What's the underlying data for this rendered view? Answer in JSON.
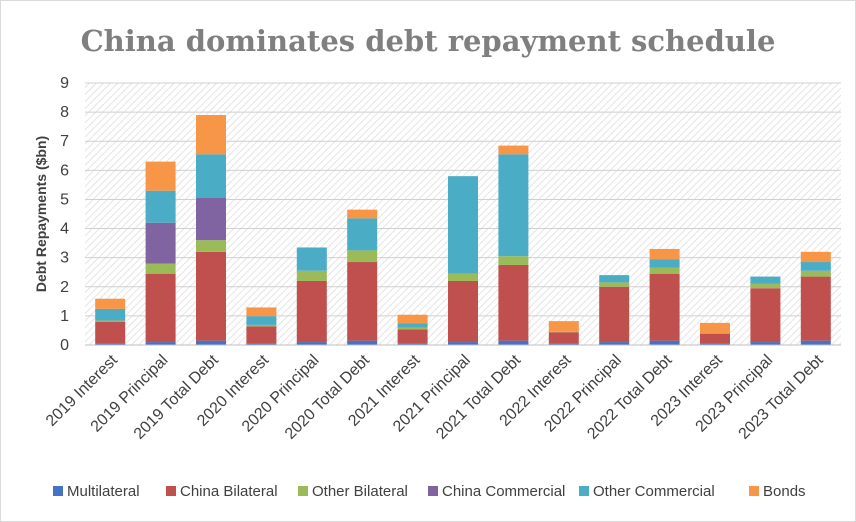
{
  "chart_data": {
    "type": "bar",
    "stacked": true,
    "title": "China dominates debt repayment schedule",
    "ylabel": "Debt Repayments ($bn)",
    "xlabel": "",
    "ylim": [
      0,
      9
    ],
    "yticks": [
      0,
      1,
      2,
      3,
      4,
      5,
      6,
      7,
      8,
      9
    ],
    "grid": true,
    "legend_position": "bottom",
    "categories": [
      "2019 Interest",
      "2019 Principal",
      "2019 Total Debt",
      "2020 Interest",
      "2020 Principal",
      "2020 Total Debt",
      "2021 Interest",
      "2021 Principal",
      "2021 Total Debt",
      "2022 Interest",
      "2022 Principal",
      "2022 Total Debt",
      "2023 Interest",
      "2023 Principal",
      "2023 Total Debt"
    ],
    "series": [
      {
        "name": "Multilateral",
        "color": "#4472c4",
        "values": [
          0.04,
          0.1,
          0.15,
          0.04,
          0.1,
          0.15,
          0.04,
          0.1,
          0.15,
          0.04,
          0.1,
          0.15,
          0.04,
          0.1,
          0.15
        ]
      },
      {
        "name": "China Bilateral",
        "color": "#c0504d",
        "values": [
          0.75,
          2.35,
          3.05,
          0.6,
          2.1,
          2.7,
          0.5,
          2.1,
          2.6,
          0.4,
          1.9,
          2.3,
          0.35,
          1.85,
          2.2
        ]
      },
      {
        "name": "Other Bilateral",
        "color": "#9bbb59",
        "values": [
          0.05,
          0.35,
          0.4,
          0.05,
          0.35,
          0.4,
          0.05,
          0.25,
          0.3,
          0.03,
          0.15,
          0.2,
          0.02,
          0.15,
          0.2
        ]
      },
      {
        "name": "China Commercial",
        "color": "#8064a2",
        "values": [
          0.0,
          1.4,
          1.45,
          0.0,
          0.0,
          0.0,
          0.0,
          0.0,
          0.0,
          0.0,
          0.0,
          0.0,
          0.0,
          0.0,
          0.0
        ]
      },
      {
        "name": "Other Commercial",
        "color": "#4bacc6",
        "values": [
          0.4,
          1.1,
          1.5,
          0.3,
          0.8,
          1.1,
          0.15,
          3.35,
          3.5,
          0.0,
          0.25,
          0.3,
          0.0,
          0.25,
          0.3
        ]
      },
      {
        "name": "Bonds",
        "color": "#f79646",
        "values": [
          0.35,
          1.0,
          1.35,
          0.3,
          0.0,
          0.3,
          0.3,
          0.0,
          0.3,
          0.35,
          0.0,
          0.35,
          0.35,
          0.0,
          0.35
        ]
      }
    ]
  }
}
